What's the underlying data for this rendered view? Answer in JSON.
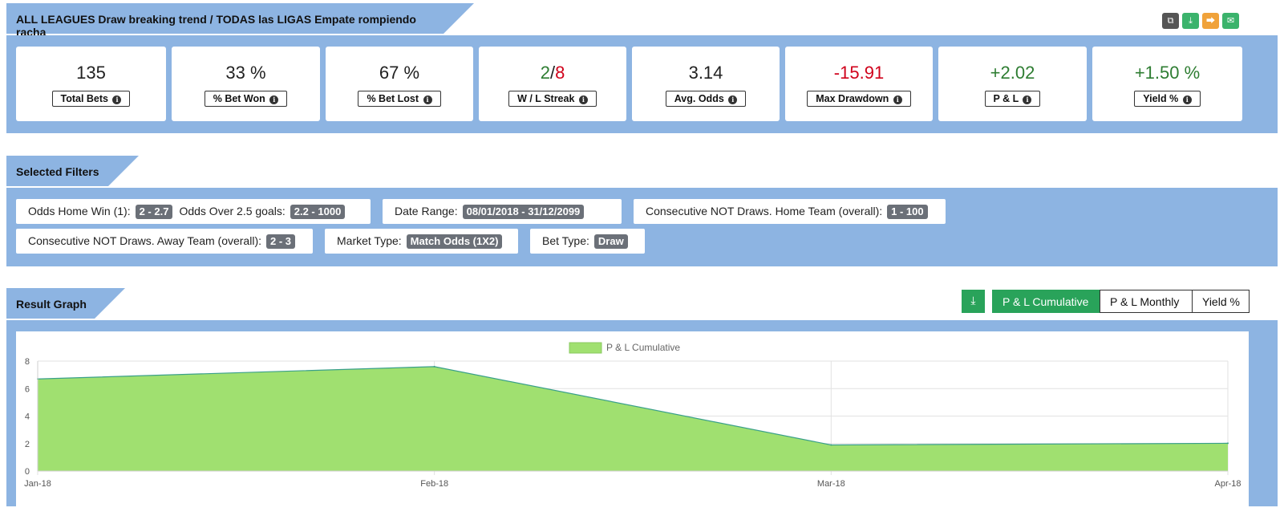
{
  "header": {
    "title": "ALL LEAGUES Draw breaking trend / TODAS las LIGAS Empate rompiendo racha",
    "actions": [
      {
        "name": "copy-icon",
        "color": "#555555"
      },
      {
        "name": "download-icon",
        "color": "#3bb36c"
      },
      {
        "name": "share-icon",
        "color": "#f0a23a"
      },
      {
        "name": "email-icon",
        "color": "#3bb36c"
      }
    ]
  },
  "stats": [
    {
      "value": "135",
      "label": "Total Bets"
    },
    {
      "value": "33 %",
      "label": "% Bet Won"
    },
    {
      "value": "67 %",
      "label": "% Bet Lost"
    },
    {
      "value_win": "2",
      "value_sep": "/",
      "value_loss": "8",
      "label": "W / L Streak"
    },
    {
      "value": "3.14",
      "label": "Avg. Odds"
    },
    {
      "value": "-15.91",
      "label": "Max Drawdown"
    },
    {
      "value": "+2.02",
      "label": "P & L"
    },
    {
      "value": "+1.50 %",
      "label": "Yield %"
    }
  ],
  "filters": {
    "title": "Selected Filters",
    "chips": [
      {
        "label": "Odds Home Win (1):",
        "badge": "2 - 2.7",
        "label2": "Odds Over 2.5 goals:",
        "badge2": "2.2 - 1000"
      },
      {
        "label": "Date Range:",
        "badge": "08/01/2018 - 31/12/2099"
      },
      {
        "label": "Consecutive NOT Draws. Home Team (overall):",
        "badge": "1 - 100"
      },
      {
        "label": "Consecutive NOT Draws. Away Team (overall):",
        "badge": "2 - 3"
      },
      {
        "label": "Market Type:",
        "badge": "Match Odds (1X2)"
      },
      {
        "label": "Bet Type:",
        "badge": "Draw"
      }
    ]
  },
  "graph": {
    "title": "Result Graph",
    "buttons": [
      "P & L Cumulative",
      "P & L Monthly",
      "Yield %"
    ],
    "active_button": "P & L Cumulative"
  },
  "chart_data": {
    "type": "area",
    "legend": "P & L Cumulative",
    "legend_position": "top-center",
    "color": "#a0e070",
    "line_color": "#3aa08a",
    "categories": [
      "Jan-18",
      "Feb-18",
      "Mar-18",
      "Apr-18"
    ],
    "series": [
      {
        "name": "P & L Cumulative",
        "values": [
          6.7,
          7.6,
          1.9,
          2.02
        ]
      }
    ],
    "ylim": [
      0,
      8
    ],
    "yticks": [
      "0",
      "2",
      "4",
      "6",
      "8"
    ],
    "grid": true
  }
}
